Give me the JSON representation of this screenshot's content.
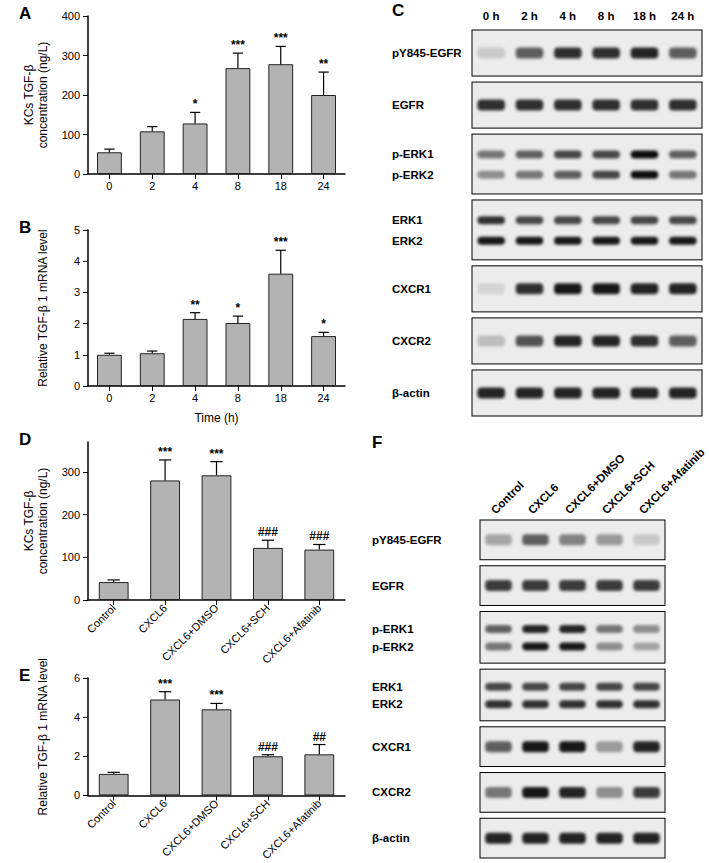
{
  "chart_data": [
    {
      "type": "bar",
      "title": "A",
      "categories": [
        "0",
        "2",
        "4",
        "8",
        "18",
        "24"
      ],
      "values": [
        55,
        108,
        128,
        268,
        278,
        200
      ],
      "errors": [
        8,
        12,
        28,
        38,
        45,
        58
      ],
      "annotations": [
        null,
        null,
        "*",
        "***",
        "***",
        "**"
      ],
      "y_label": "KCs TGF-β\nconcentration (ng/L)",
      "color": "#b3b3b3",
      "ylim": [
        0,
        400
      ],
      "yticks": [
        0,
        100,
        200,
        300,
        400
      ],
      "grid": false
    },
    {
      "type": "bar",
      "title": "B",
      "categories": [
        "0",
        "2",
        "4",
        "8",
        "18",
        "24"
      ],
      "values": [
        1.0,
        1.05,
        2.15,
        2.02,
        3.6,
        1.6
      ],
      "errors": [
        0.05,
        0.07,
        0.2,
        0.22,
        0.75,
        0.12
      ],
      "annotations": [
        null,
        null,
        "**",
        "*",
        "***",
        "*"
      ],
      "y_label": "Relative TGF-β 1 mRNA level",
      "x_label": "Time (h)",
      "color": "#b3b3b3",
      "ylim": [
        0,
        5
      ],
      "yticks": [
        0,
        1,
        2,
        3,
        4,
        5
      ],
      "grid": false
    },
    {
      "type": "bar",
      "title": "D",
      "categories": [
        "Control",
        "CXCL6",
        "CXCL6+DMSO",
        "CXCL6+SCH",
        "CXCL6+Afatinib"
      ],
      "values": [
        42,
        280,
        292,
        122,
        118
      ],
      "errors": [
        5,
        48,
        32,
        18,
        12
      ],
      "annotations": [
        null,
        "***",
        "***",
        "###",
        "###"
      ],
      "y_label": "KCs TGF-β\nconcentration (ng/L)",
      "color": "#b3b3b3",
      "ylim": [
        0,
        370
      ],
      "yticks": [
        0,
        100,
        200,
        300
      ],
      "grid": false
    },
    {
      "type": "bar",
      "title": "E",
      "categories": [
        "Control",
        "CXCL6",
        "CXCL6+DMSO",
        "CXCL6+SCH",
        "CXCL6+Afatinib"
      ],
      "values": [
        1.1,
        4.9,
        4.4,
        2.0,
        2.1
      ],
      "errors": [
        0.08,
        0.4,
        0.3,
        0.08,
        0.5
      ],
      "annotations": [
        null,
        "***",
        "***",
        "###",
        "##"
      ],
      "y_label": "Relative TGF-β 1 mRNA level",
      "color": "#b3b3b3",
      "ylim": [
        0,
        6
      ],
      "yticks": [
        0,
        2,
        4,
        6
      ],
      "grid": false
    }
  ],
  "blots": [
    {
      "panel": "C",
      "lanes": [
        "0 h",
        "2 h",
        "4 h",
        "8 h",
        "18 h",
        "24 h"
      ],
      "rows": [
        {
          "labels": [
            "pY845-EGFR"
          ],
          "intensity": [
            [
              0.15,
              0.6,
              0.8,
              0.8,
              0.85,
              0.6
            ]
          ]
        },
        {
          "labels": [
            "EGFR"
          ],
          "intensity": [
            [
              0.8,
              0.8,
              0.8,
              0.8,
              0.8,
              0.8
            ]
          ]
        },
        {
          "labels": [
            "p-ERK1",
            "p-ERK2"
          ],
          "intensity": [
            [
              0.5,
              0.6,
              0.7,
              0.7,
              0.95,
              0.6
            ],
            [
              0.4,
              0.5,
              0.6,
              0.7,
              0.95,
              0.5
            ]
          ]
        },
        {
          "labels": [
            "ERK1",
            "ERK2"
          ],
          "intensity": [
            [
              0.8,
              0.7,
              0.7,
              0.7,
              0.7,
              0.7
            ],
            [
              0.9,
              0.9,
              0.9,
              0.9,
              0.9,
              0.9
            ]
          ]
        },
        {
          "labels": [
            "CXCR1"
          ],
          "intensity": [
            [
              0.1,
              0.8,
              0.9,
              0.9,
              0.85,
              0.85
            ]
          ]
        },
        {
          "labels": [
            "CXCR2"
          ],
          "intensity": [
            [
              0.2,
              0.65,
              0.85,
              0.85,
              0.8,
              0.6
            ]
          ]
        },
        {
          "labels": [
            "β-actin"
          ],
          "intensity": [
            [
              0.85,
              0.85,
              0.85,
              0.85,
              0.85,
              0.85
            ]
          ]
        }
      ]
    },
    {
      "panel": "F",
      "lanes": [
        "Control",
        "CXCL6",
        "CXCL6+DMSO",
        "CXCL6+SCH",
        "CXCL6+Afatinib"
      ],
      "rows": [
        {
          "labels": [
            "pY845-EGFR"
          ],
          "intensity": [
            [
              0.3,
              0.6,
              0.45,
              0.35,
              0.15
            ]
          ]
        },
        {
          "labels": [
            "EGFR"
          ],
          "intensity": [
            [
              0.75,
              0.75,
              0.75,
              0.75,
              0.75
            ]
          ]
        },
        {
          "labels": [
            "p-ERK1",
            "p-ERK2"
          ],
          "intensity": [
            [
              0.6,
              0.85,
              0.85,
              0.5,
              0.4
            ],
            [
              0.5,
              0.9,
              0.9,
              0.4,
              0.3
            ]
          ]
        },
        {
          "labels": [
            "ERK1",
            "ERK2"
          ],
          "intensity": [
            [
              0.7,
              0.7,
              0.7,
              0.7,
              0.7
            ],
            [
              0.8,
              0.8,
              0.8,
              0.8,
              0.8
            ]
          ]
        },
        {
          "labels": [
            "CXCR1"
          ],
          "intensity": [
            [
              0.6,
              0.9,
              0.9,
              0.35,
              0.85
            ]
          ]
        },
        {
          "labels": [
            "CXCR2"
          ],
          "intensity": [
            [
              0.5,
              0.9,
              0.85,
              0.4,
              0.75
            ]
          ]
        },
        {
          "labels": [
            "β-actin"
          ],
          "intensity": [
            [
              0.85,
              0.85,
              0.85,
              0.85,
              0.85
            ]
          ]
        }
      ]
    }
  ]
}
